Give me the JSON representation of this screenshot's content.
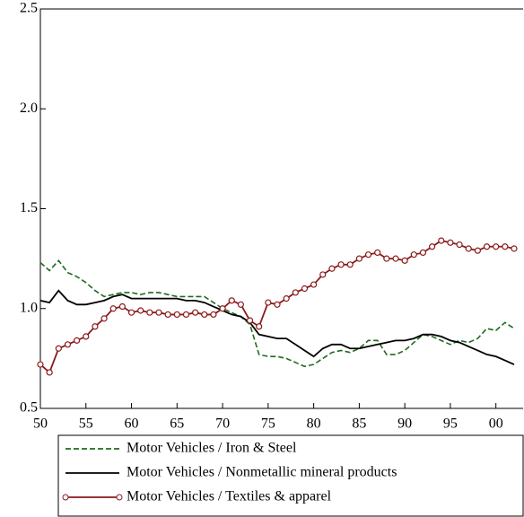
{
  "chart_data": {
    "type": "line",
    "x": [
      1950,
      1951,
      1952,
      1953,
      1954,
      1955,
      1956,
      1957,
      1958,
      1959,
      1960,
      1961,
      1962,
      1963,
      1964,
      1965,
      1966,
      1967,
      1968,
      1969,
      1970,
      1971,
      1972,
      1973,
      1974,
      1975,
      1976,
      1977,
      1978,
      1979,
      1980,
      1981,
      1982,
      1983,
      1984,
      1985,
      1986,
      1987,
      1988,
      1989,
      1990,
      1991,
      1992,
      1993,
      1994,
      1995,
      1996,
      1997,
      1998,
      1999,
      2000,
      2001,
      2002
    ],
    "series": [
      {
        "name": "Motor Vehicles / Iron & Steel",
        "color": "#1e6b1e",
        "style": "dashed",
        "values": [
          1.23,
          1.19,
          1.24,
          1.18,
          1.16,
          1.13,
          1.09,
          1.06,
          1.07,
          1.08,
          1.08,
          1.07,
          1.08,
          1.08,
          1.07,
          1.06,
          1.06,
          1.06,
          1.06,
          1.03,
          1.0,
          0.98,
          0.96,
          0.92,
          0.77,
          0.76,
          0.76,
          0.75,
          0.73,
          0.71,
          0.72,
          0.75,
          0.78,
          0.79,
          0.78,
          0.8,
          0.84,
          0.84,
          0.77,
          0.77,
          0.79,
          0.83,
          0.87,
          0.86,
          0.84,
          0.82,
          0.84,
          0.83,
          0.85,
          0.9,
          0.89,
          0.93,
          0.9
        ]
      },
      {
        "name": "Motor Vehicles / Nonmetallic mineral products",
        "color": "#000000",
        "style": "solid",
        "values": [
          1.04,
          1.03,
          1.09,
          1.04,
          1.02,
          1.02,
          1.03,
          1.04,
          1.06,
          1.07,
          1.05,
          1.05,
          1.05,
          1.05,
          1.05,
          1.05,
          1.04,
          1.04,
          1.03,
          1.01,
          0.99,
          0.97,
          0.96,
          0.93,
          0.87,
          0.86,
          0.85,
          0.85,
          0.82,
          0.79,
          0.76,
          0.8,
          0.82,
          0.82,
          0.8,
          0.8,
          0.81,
          0.82,
          0.83,
          0.84,
          0.84,
          0.85,
          0.87,
          0.87,
          0.86,
          0.84,
          0.83,
          0.81,
          0.79,
          0.77,
          0.76,
          0.74,
          0.72
        ]
      },
      {
        "name": "Motor Vehicles / Textiles & apparel",
        "color": "#8b1a1a",
        "style": "solid",
        "marker": "circle",
        "values": [
          0.72,
          0.68,
          0.8,
          0.82,
          0.84,
          0.86,
          0.91,
          0.95,
          1.0,
          1.01,
          0.98,
          0.99,
          0.98,
          0.98,
          0.97,
          0.97,
          0.97,
          0.98,
          0.97,
          0.97,
          1.0,
          1.04,
          1.02,
          0.94,
          0.91,
          1.03,
          1.02,
          1.05,
          1.08,
          1.1,
          1.12,
          1.17,
          1.2,
          1.22,
          1.22,
          1.25,
          1.27,
          1.28,
          1.25,
          1.25,
          1.24,
          1.27,
          1.28,
          1.31,
          1.34,
          1.33,
          1.32,
          1.3,
          1.29,
          1.31,
          1.31,
          1.31,
          1.3
        ]
      }
    ],
    "xlim": [
      1950,
      2002
    ],
    "xticks": [
      {
        "value": 1950,
        "label": "50"
      },
      {
        "value": 1955,
        "label": "55"
      },
      {
        "value": 1960,
        "label": "60"
      },
      {
        "value": 1965,
        "label": "65"
      },
      {
        "value": 1970,
        "label": "70"
      },
      {
        "value": 1975,
        "label": "75"
      },
      {
        "value": 1980,
        "label": "80"
      },
      {
        "value": 1985,
        "label": "85"
      },
      {
        "value": 1990,
        "label": "90"
      },
      {
        "value": 1995,
        "label": "95"
      },
      {
        "value": 2000,
        "label": "00"
      }
    ],
    "ylim": [
      0.5,
      2.5
    ],
    "yticks": [
      {
        "value": 0.5,
        "label": "0.5"
      },
      {
        "value": 1.0,
        "label": "1.0"
      },
      {
        "value": 1.5,
        "label": "1.5"
      },
      {
        "value": 2.0,
        "label": "2.0"
      },
      {
        "value": 2.5,
        "label": "2.5"
      }
    ],
    "grid": false,
    "legend": "bottom"
  }
}
